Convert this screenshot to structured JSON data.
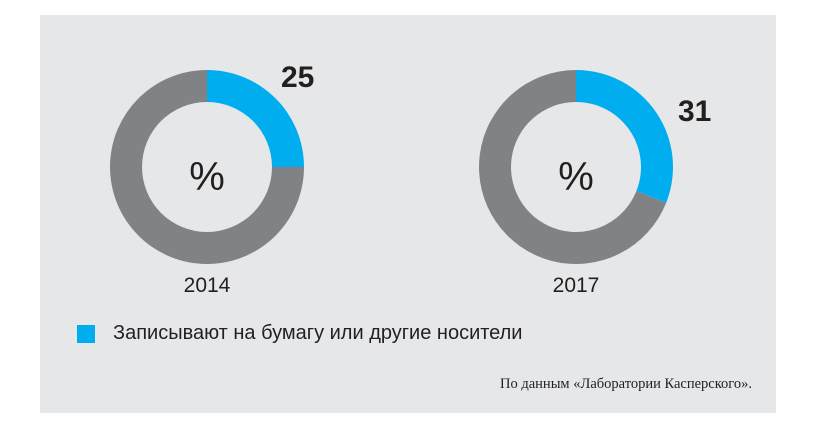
{
  "chart_data": {
    "type": "donut",
    "charts": [
      {
        "year": "2014",
        "value": 25,
        "value_label": "25",
        "center_label": "%"
      },
      {
        "year": "2017",
        "value": 31,
        "value_label": "31",
        "center_label": "%"
      }
    ],
    "legend": [
      {
        "label": "Записывают на бумагу или другие носители",
        "color": "#00aeef"
      }
    ],
    "colors": {
      "highlight": "#00aeef",
      "rest": "#808285",
      "background": "#e6e7e8"
    }
  },
  "source_note": "По данным «Лаборатории Касперского»."
}
